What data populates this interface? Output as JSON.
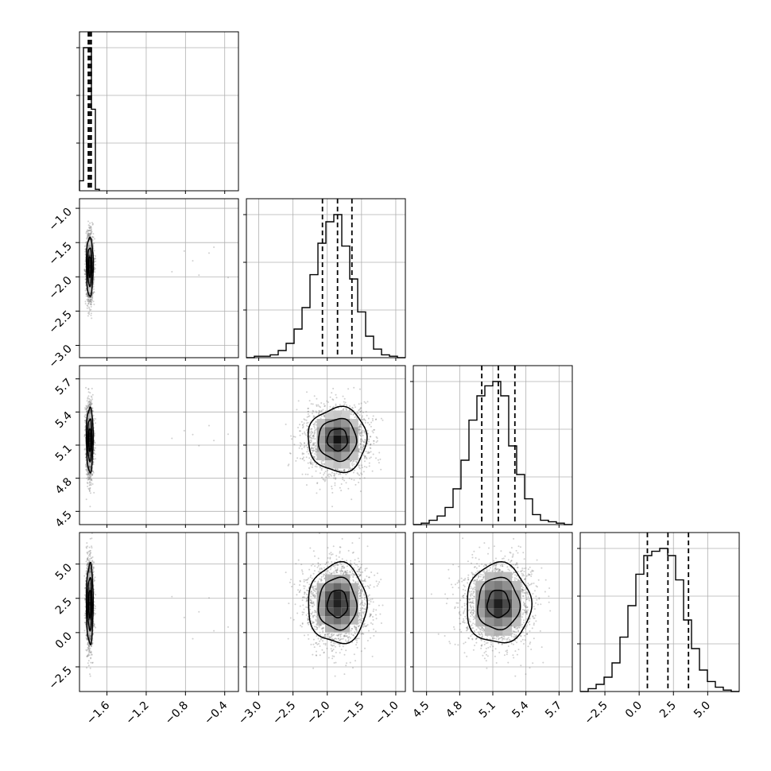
{
  "chart_data": {
    "type": "corner",
    "n_params": 4,
    "grid": true,
    "quantiles": [
      0.16,
      0.5,
      0.84
    ],
    "colors": {
      "line": "#000000",
      "grid": "#b0b0b0",
      "points": "#777777"
    },
    "params": [
      {
        "range": [
          -1.88,
          -0.26
        ],
        "ticks": [
          -1.6,
          -1.2,
          -0.8,
          -0.4
        ],
        "tick_labels": [
          "−1.6",
          "−1.2",
          "−0.8",
          "−0.4"
        ],
        "quantile_values": [
          -1.79,
          -1.775,
          -1.76
        ],
        "hist": {
          "edges_start": -1.88,
          "bin_width": 0.0405,
          "counts": [
            0.07,
            1.0,
            1.0,
            0.57,
            0.01
          ]
        }
      },
      {
        "range": [
          -3.18,
          -0.86
        ],
        "ticks": [
          -3.0,
          -2.5,
          -2.0,
          -1.5,
          -1.0
        ],
        "tick_labels": [
          "−3.0",
          "−2.5",
          "−2.0",
          "−1.5",
          "−1.0"
        ],
        "quantile_values": [
          -2.07,
          -1.85,
          -1.64
        ],
        "hist": {
          "edges_start": -3.18,
          "bin_width": 0.116,
          "counts": [
            0,
            0.01,
            0.01,
            0.02,
            0.05,
            0.1,
            0.2,
            0.35,
            0.58,
            0.8,
            0.95,
            1.0,
            0.78,
            0.55,
            0.32,
            0.15,
            0.06,
            0.02,
            0.01,
            0.0
          ]
        }
      },
      {
        "range": [
          4.38,
          5.82
        ],
        "ticks": [
          4.5,
          4.8,
          5.1,
          5.4,
          5.7
        ],
        "tick_labels": [
          "4.5",
          "4.8",
          "5.1",
          "5.4",
          "5.7"
        ],
        "quantile_values": [
          5.0,
          5.15,
          5.3
        ],
        "hist": {
          "edges_start": 4.38,
          "bin_width": 0.072,
          "counts": [
            0,
            0.01,
            0.03,
            0.06,
            0.12,
            0.25,
            0.45,
            0.73,
            0.9,
            0.97,
            1.0,
            0.9,
            0.55,
            0.35,
            0.18,
            0.07,
            0.03,
            0.02,
            0.01,
            0
          ]
        }
      },
      {
        "range": [
          -4.3,
          7.3
        ],
        "ticks": [
          -2.5,
          0.0,
          2.5,
          5.0
        ],
        "tick_labels": [
          "−2.5",
          "0.0",
          "2.5",
          "5.0"
        ],
        "quantile_values": [
          0.6,
          2.1,
          3.6
        ],
        "hist": {
          "edges_start": -4.3,
          "bin_width": 0.58,
          "counts": [
            0,
            0.02,
            0.05,
            0.1,
            0.2,
            0.38,
            0.6,
            0.82,
            0.95,
            0.98,
            1.0,
            0.95,
            0.78,
            0.5,
            0.3,
            0.15,
            0.07,
            0.03,
            0.01,
            0
          ]
        }
      }
    ],
    "pairs": {
      "means": [
        -1.775,
        -1.85,
        5.15,
        2.1
      ],
      "sigmas": [
        0.018,
        0.22,
        0.15,
        1.5
      ],
      "correlations": [
        [
          1,
          0,
          0,
          0
        ],
        [
          0,
          1,
          0,
          0
        ],
        [
          0,
          0,
          1,
          0
        ],
        [
          0,
          0,
          0,
          1
        ]
      ]
    }
  }
}
